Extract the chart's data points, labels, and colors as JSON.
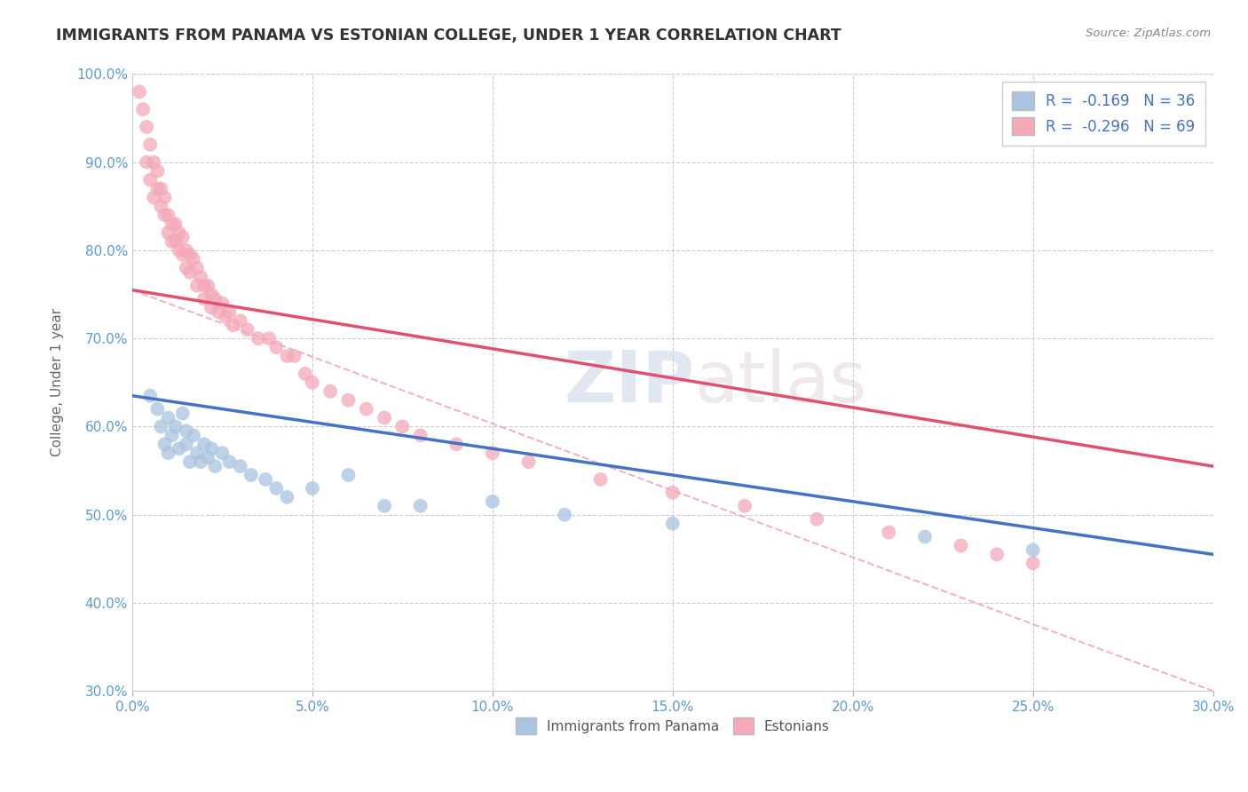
{
  "title": "IMMIGRANTS FROM PANAMA VS ESTONIAN COLLEGE, UNDER 1 YEAR CORRELATION CHART",
  "source": "Source: ZipAtlas.com",
  "xlabel": "",
  "ylabel": "College, Under 1 year",
  "xlim": [
    0.0,
    0.3
  ],
  "ylim": [
    0.3,
    1.0
  ],
  "xticks": [
    0.0,
    0.05,
    0.1,
    0.15,
    0.2,
    0.25,
    0.3
  ],
  "yticks": [
    0.3,
    0.4,
    0.5,
    0.6,
    0.7,
    0.8,
    0.9,
    1.0
  ],
  "xticklabels": [
    "0.0%",
    "5.0%",
    "10.0%",
    "15.0%",
    "20.0%",
    "25.0%",
    "30.0%"
  ],
  "yticklabels": [
    "30.0%",
    "40.0%",
    "50.0%",
    "60.0%",
    "70.0%",
    "80.0%",
    "90.0%",
    "100.0%"
  ],
  "legend_r1": "R =  -0.169   N = 36",
  "legend_r2": "R =  -0.296   N = 69",
  "color_panama": "#a8c4e0",
  "color_estonian": "#f4a8b8",
  "color_panama_line": "#4472c4",
  "color_estonian_line": "#e05070",
  "color_dashed": "#f0a0b0",
  "watermark_zip": "ZIP",
  "watermark_atlas": "atlas",
  "panama_scatter_x": [
    0.005,
    0.007,
    0.008,
    0.009,
    0.01,
    0.01,
    0.011,
    0.012,
    0.013,
    0.014,
    0.015,
    0.015,
    0.016,
    0.017,
    0.018,
    0.019,
    0.02,
    0.021,
    0.022,
    0.023,
    0.025,
    0.027,
    0.03,
    0.033,
    0.037,
    0.04,
    0.043,
    0.05,
    0.06,
    0.07,
    0.08,
    0.1,
    0.12,
    0.15,
    0.22,
    0.25
  ],
  "panama_scatter_y": [
    0.635,
    0.62,
    0.6,
    0.58,
    0.57,
    0.61,
    0.59,
    0.6,
    0.575,
    0.615,
    0.595,
    0.58,
    0.56,
    0.59,
    0.57,
    0.56,
    0.58,
    0.565,
    0.575,
    0.555,
    0.57,
    0.56,
    0.555,
    0.545,
    0.54,
    0.53,
    0.52,
    0.53,
    0.545,
    0.51,
    0.51,
    0.515,
    0.5,
    0.49,
    0.475,
    0.46
  ],
  "estonian_scatter_x": [
    0.002,
    0.003,
    0.004,
    0.004,
    0.005,
    0.005,
    0.006,
    0.006,
    0.007,
    0.007,
    0.008,
    0.008,
    0.009,
    0.009,
    0.01,
    0.01,
    0.011,
    0.011,
    0.012,
    0.012,
    0.013,
    0.013,
    0.014,
    0.014,
    0.015,
    0.015,
    0.016,
    0.016,
    0.017,
    0.018,
    0.018,
    0.019,
    0.02,
    0.02,
    0.021,
    0.022,
    0.022,
    0.023,
    0.024,
    0.025,
    0.026,
    0.027,
    0.028,
    0.03,
    0.032,
    0.035,
    0.038,
    0.04,
    0.043,
    0.045,
    0.048,
    0.05,
    0.055,
    0.06,
    0.065,
    0.07,
    0.075,
    0.08,
    0.09,
    0.1,
    0.11,
    0.13,
    0.15,
    0.17,
    0.19,
    0.21,
    0.23,
    0.24,
    0.25
  ],
  "estonian_scatter_y": [
    0.98,
    0.96,
    0.94,
    0.9,
    0.92,
    0.88,
    0.9,
    0.86,
    0.89,
    0.87,
    0.87,
    0.85,
    0.86,
    0.84,
    0.84,
    0.82,
    0.83,
    0.81,
    0.83,
    0.81,
    0.82,
    0.8,
    0.815,
    0.795,
    0.8,
    0.78,
    0.795,
    0.775,
    0.79,
    0.78,
    0.76,
    0.77,
    0.76,
    0.745,
    0.76,
    0.75,
    0.735,
    0.745,
    0.73,
    0.74,
    0.725,
    0.73,
    0.715,
    0.72,
    0.71,
    0.7,
    0.7,
    0.69,
    0.68,
    0.68,
    0.66,
    0.65,
    0.64,
    0.63,
    0.62,
    0.61,
    0.6,
    0.59,
    0.58,
    0.57,
    0.56,
    0.54,
    0.525,
    0.51,
    0.495,
    0.48,
    0.465,
    0.455,
    0.445
  ],
  "panama_trend_x": [
    0.0,
    0.3
  ],
  "panama_trend_y": [
    0.635,
    0.455
  ],
  "estonian_trend_x": [
    0.0,
    0.3
  ],
  "estonian_trend_y": [
    0.755,
    0.555
  ],
  "dashed_trend_x": [
    0.0,
    0.3
  ],
  "dashed_trend_y": [
    0.755,
    0.3
  ]
}
